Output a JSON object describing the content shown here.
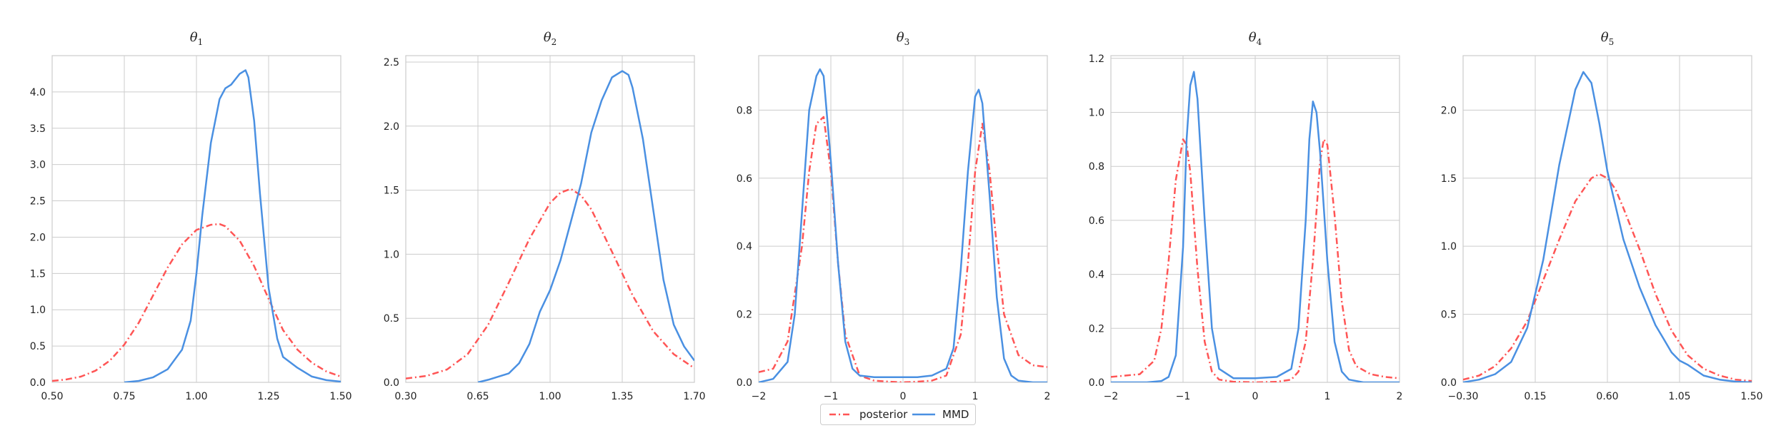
{
  "colors": {
    "posterior": "#ff5555",
    "mmd": "#4a90e2",
    "grid": "#cccccc",
    "axis": "#cccccc",
    "text": "#222222"
  },
  "legend": {
    "placement": "bottom-center",
    "items": [
      {
        "label": "posterior",
        "color": "#ff5555",
        "style": "dash-dot"
      },
      {
        "label": "MMD",
        "color": "#4a90e2",
        "style": "solid"
      }
    ]
  },
  "chart_data": [
    {
      "type": "line",
      "title": "θ",
      "title_sub": "1",
      "xlim": [
        0.5,
        1.5
      ],
      "ylim": [
        0,
        4.5
      ],
      "xticks": [
        0.5,
        0.75,
        1.0,
        1.25,
        1.5
      ],
      "xticklabels": [
        "0.50",
        "0.75",
        "1.00",
        "1.25",
        "1.50"
      ],
      "yticks": [
        0,
        0.5,
        1,
        1.5,
        2,
        2.5,
        3,
        3.5,
        4
      ],
      "yticklabels": [
        "0.0",
        "0.5",
        "1.0",
        "1.5",
        "2.0",
        "2.5",
        "3.0",
        "3.5",
        "4.0"
      ],
      "grid": true,
      "series": [
        {
          "name": "posterior",
          "style": "dash-dot",
          "x": [
            0.5,
            0.55,
            0.6,
            0.65,
            0.7,
            0.75,
            0.8,
            0.85,
            0.9,
            0.95,
            1.0,
            1.05,
            1.08,
            1.1,
            1.15,
            1.2,
            1.25,
            1.3,
            1.35,
            1.4,
            1.45,
            1.5
          ],
          "y": [
            0.02,
            0.04,
            0.08,
            0.16,
            0.3,
            0.52,
            0.82,
            1.2,
            1.58,
            1.9,
            2.1,
            2.17,
            2.18,
            2.15,
            1.95,
            1.6,
            1.15,
            0.72,
            0.45,
            0.27,
            0.15,
            0.08
          ]
        },
        {
          "name": "MMD",
          "style": "solid",
          "x": [
            0.75,
            0.8,
            0.85,
            0.9,
            0.95,
            0.98,
            1.0,
            1.02,
            1.05,
            1.08,
            1.1,
            1.12,
            1.15,
            1.17,
            1.18,
            1.2,
            1.22,
            1.25,
            1.28,
            1.3,
            1.35,
            1.4,
            1.45,
            1.5
          ],
          "y": [
            0.0,
            0.02,
            0.07,
            0.18,
            0.45,
            0.85,
            1.5,
            2.3,
            3.3,
            3.9,
            4.05,
            4.1,
            4.25,
            4.3,
            4.2,
            3.6,
            2.6,
            1.3,
            0.6,
            0.35,
            0.2,
            0.08,
            0.03,
            0.01
          ]
        }
      ]
    },
    {
      "type": "line",
      "title": "θ",
      "title_sub": "2",
      "xlim": [
        0.3,
        1.7
      ],
      "ylim": [
        0,
        2.55
      ],
      "xticks": [
        0.3,
        0.65,
        1.0,
        1.35,
        1.7
      ],
      "xticklabels": [
        "0.30",
        "0.65",
        "1.00",
        "1.35",
        "1.70"
      ],
      "yticks": [
        0,
        0.5,
        1,
        1.5,
        2,
        2.5
      ],
      "yticklabels": [
        "0.0",
        "0.5",
        "1.0",
        "1.5",
        "2.0",
        "2.5"
      ],
      "grid": true,
      "series": [
        {
          "name": "posterior",
          "style": "dash-dot",
          "x": [
            0.3,
            0.4,
            0.5,
            0.6,
            0.7,
            0.8,
            0.9,
            1.0,
            1.05,
            1.1,
            1.15,
            1.2,
            1.3,
            1.4,
            1.5,
            1.6,
            1.7
          ],
          "y": [
            0.03,
            0.05,
            0.1,
            0.22,
            0.45,
            0.78,
            1.12,
            1.4,
            1.48,
            1.51,
            1.46,
            1.35,
            1.02,
            0.68,
            0.4,
            0.22,
            0.11
          ]
        },
        {
          "name": "MMD",
          "style": "solid",
          "x": [
            0.65,
            0.7,
            0.8,
            0.85,
            0.9,
            0.95,
            1.0,
            1.05,
            1.1,
            1.15,
            1.2,
            1.25,
            1.3,
            1.35,
            1.38,
            1.4,
            1.45,
            1.5,
            1.55,
            1.6,
            1.65,
            1.7
          ],
          "y": [
            0.0,
            0.02,
            0.07,
            0.15,
            0.3,
            0.55,
            0.72,
            0.95,
            1.25,
            1.55,
            1.95,
            2.2,
            2.38,
            2.43,
            2.4,
            2.3,
            1.9,
            1.35,
            0.8,
            0.45,
            0.28,
            0.17
          ]
        }
      ]
    },
    {
      "type": "line",
      "title": "θ",
      "title_sub": "3",
      "xlim": [
        -2,
        2
      ],
      "ylim": [
        0,
        0.96
      ],
      "xticks": [
        -2,
        -1,
        0,
        1,
        2
      ],
      "xticklabels": [
        "−2",
        "−1",
        "0",
        "1",
        "2"
      ],
      "yticks": [
        0,
        0.2,
        0.4,
        0.6,
        0.8
      ],
      "yticklabels": [
        "0.0",
        "0.2",
        "0.4",
        "0.6",
        "0.8"
      ],
      "grid": true,
      "series": [
        {
          "name": "posterior",
          "style": "dash-dot",
          "x": [
            -2,
            -1.8,
            -1.6,
            -1.4,
            -1.3,
            -1.2,
            -1.1,
            -1.0,
            -0.9,
            -0.8,
            -0.6,
            -0.4,
            -0.2,
            0,
            0.2,
            0.4,
            0.6,
            0.8,
            0.9,
            1.0,
            1.1,
            1.2,
            1.3,
            1.4,
            1.6,
            1.8,
            2.0
          ],
          "y": [
            0.03,
            0.04,
            0.12,
            0.4,
            0.62,
            0.76,
            0.78,
            0.62,
            0.35,
            0.14,
            0.02,
            0.005,
            0.002,
            0.0,
            0.002,
            0.005,
            0.02,
            0.14,
            0.35,
            0.62,
            0.76,
            0.62,
            0.4,
            0.2,
            0.08,
            0.05,
            0.045
          ]
        },
        {
          "name": "MMD",
          "style": "solid",
          "x": [
            -2,
            -1.8,
            -1.6,
            -1.5,
            -1.4,
            -1.3,
            -1.2,
            -1.15,
            -1.1,
            -1.0,
            -0.9,
            -0.8,
            -0.7,
            -0.6,
            -0.4,
            -0.2,
            0,
            0.2,
            0.4,
            0.6,
            0.7,
            0.8,
            0.9,
            1.0,
            1.05,
            1.1,
            1.2,
            1.3,
            1.4,
            1.5,
            1.6,
            1.8,
            2.0
          ],
          "y": [
            0.0,
            0.01,
            0.06,
            0.2,
            0.5,
            0.8,
            0.9,
            0.92,
            0.9,
            0.65,
            0.35,
            0.12,
            0.04,
            0.02,
            0.015,
            0.015,
            0.015,
            0.015,
            0.02,
            0.04,
            0.1,
            0.33,
            0.62,
            0.84,
            0.86,
            0.82,
            0.55,
            0.25,
            0.07,
            0.02,
            0.005,
            0.0,
            0.0
          ]
        }
      ]
    },
    {
      "type": "line",
      "title": "θ",
      "title_sub": "4",
      "xlim": [
        -2,
        2
      ],
      "ylim": [
        0,
        1.21
      ],
      "xticks": [
        -2,
        -1,
        0,
        1,
        2
      ],
      "xticklabels": [
        "−2",
        "−1",
        "0",
        "1",
        "2"
      ],
      "yticks": [
        0,
        0.2,
        0.4,
        0.6,
        0.8,
        1.0,
        1.2
      ],
      "yticklabels": [
        "0.0",
        "0.2",
        "0.4",
        "0.6",
        "0.8",
        "1.0",
        "1.2"
      ],
      "grid": true,
      "series": [
        {
          "name": "posterior",
          "style": "dash-dot",
          "x": [
            -2,
            -1.6,
            -1.4,
            -1.3,
            -1.2,
            -1.1,
            -1.0,
            -0.95,
            -0.9,
            -0.8,
            -0.7,
            -0.6,
            -0.5,
            -0.3,
            0,
            0.3,
            0.5,
            0.6,
            0.7,
            0.8,
            0.9,
            0.95,
            1.0,
            1.1,
            1.2,
            1.3,
            1.4,
            1.6,
            1.8,
            2.0
          ],
          "y": [
            0.02,
            0.03,
            0.08,
            0.2,
            0.45,
            0.75,
            0.9,
            0.88,
            0.78,
            0.42,
            0.15,
            0.04,
            0.01,
            0.002,
            0.0,
            0.002,
            0.01,
            0.04,
            0.15,
            0.45,
            0.82,
            0.9,
            0.88,
            0.62,
            0.3,
            0.12,
            0.06,
            0.03,
            0.02,
            0.015
          ]
        },
        {
          "name": "MMD",
          "style": "solid",
          "x": [
            -2,
            -1.5,
            -1.3,
            -1.2,
            -1.1,
            -1.0,
            -0.95,
            -0.9,
            -0.85,
            -0.8,
            -0.7,
            -0.6,
            -0.5,
            -0.3,
            0,
            0.3,
            0.5,
            0.6,
            0.7,
            0.75,
            0.8,
            0.85,
            0.9,
            1.0,
            1.1,
            1.2,
            1.3,
            1.5,
            2.0
          ],
          "y": [
            0.0,
            0.0,
            0.005,
            0.02,
            0.1,
            0.5,
            0.9,
            1.1,
            1.15,
            1.05,
            0.6,
            0.2,
            0.05,
            0.015,
            0.015,
            0.02,
            0.05,
            0.2,
            0.6,
            0.9,
            1.04,
            1.0,
            0.85,
            0.45,
            0.15,
            0.04,
            0.01,
            0.0,
            0.0
          ]
        }
      ]
    },
    {
      "type": "line",
      "title": "θ",
      "title_sub": "5",
      "xlim": [
        -0.3,
        1.5
      ],
      "ylim": [
        0,
        2.4
      ],
      "xticks": [
        -0.3,
        0.15,
        0.6,
        1.05,
        1.5
      ],
      "xticklabels": [
        "−0.30",
        "0.15",
        "0.60",
        "1.05",
        "1.50"
      ],
      "yticks": [
        0,
        0.5,
        1,
        1.5,
        2
      ],
      "yticklabels": [
        "0.0",
        "0.5",
        "1.0",
        "1.5",
        "2.0"
      ],
      "grid": true,
      "series": [
        {
          "name": "posterior",
          "style": "dash-dot",
          "x": [
            -0.3,
            -0.2,
            -0.1,
            0.0,
            0.1,
            0.2,
            0.3,
            0.4,
            0.5,
            0.55,
            0.6,
            0.65,
            0.7,
            0.8,
            0.9,
            1.0,
            1.1,
            1.2,
            1.3,
            1.4,
            1.5
          ],
          "y": [
            0.02,
            0.05,
            0.12,
            0.25,
            0.45,
            0.75,
            1.05,
            1.33,
            1.5,
            1.53,
            1.5,
            1.42,
            1.28,
            0.98,
            0.65,
            0.38,
            0.2,
            0.1,
            0.05,
            0.02,
            0.01
          ]
        },
        {
          "name": "MMD",
          "style": "solid",
          "x": [
            -0.3,
            -0.2,
            -0.1,
            0.0,
            0.1,
            0.2,
            0.3,
            0.4,
            0.45,
            0.5,
            0.55,
            0.6,
            0.7,
            0.8,
            0.9,
            0.95,
            1.0,
            1.05,
            1.1,
            1.2,
            1.3,
            1.4,
            1.5
          ],
          "y": [
            0.0,
            0.02,
            0.06,
            0.15,
            0.4,
            0.9,
            1.6,
            2.15,
            2.28,
            2.2,
            1.9,
            1.55,
            1.05,
            0.7,
            0.42,
            0.32,
            0.22,
            0.16,
            0.13,
            0.05,
            0.02,
            0.005,
            0.0
          ]
        }
      ]
    }
  ]
}
